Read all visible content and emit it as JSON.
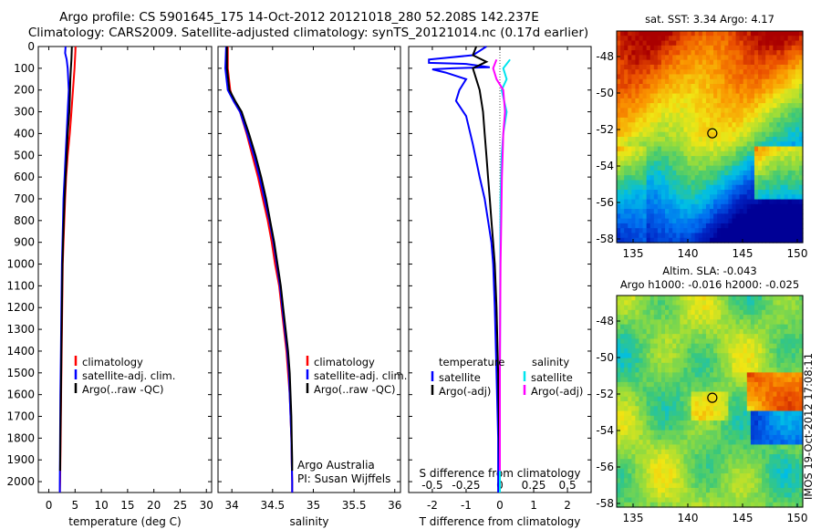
{
  "header": {
    "line1": "Argo profile: CS 5901645_175 14-Oct-2012 20121018_280 52.208S 142.237E",
    "line2": "Climatology: CARS2009. Satellite-adjusted climatology: synTS_20121014.nc (0.17d earlier)"
  },
  "credits": {
    "org": "Argo Australia",
    "pi": "PI: Susan Wijffels",
    "stamp": "IMOS 19-Oct-2012 17:08:11"
  },
  "colors": {
    "climatology": "#ff0000",
    "satellite": "#0000ff",
    "argo": "#000000",
    "sal_satellite": "#00e5ee",
    "sal_argo": "#ff00ff"
  },
  "chart_data": [
    {
      "type": "line",
      "name": "temperature",
      "xlabel": "temperature (deg C)",
      "ylabel": "",
      "xlim": [
        -2,
        31
      ],
      "ylim": [
        2050,
        0
      ],
      "x_ticks": [
        0,
        5,
        10,
        15,
        20,
        25,
        30
      ],
      "y_ticks": [
        0,
        100,
        200,
        300,
        400,
        500,
        600,
        700,
        800,
        900,
        1000,
        1100,
        1200,
        1300,
        1400,
        1500,
        1600,
        1700,
        1800,
        1900,
        2000
      ],
      "legend": [
        "climatology",
        "satellite-adj. clim.",
        "Argo(..raw -QC)"
      ],
      "series": [
        {
          "name": "climatology",
          "color": "#ff0000",
          "points": [
            [
              5.1,
              0
            ],
            [
              5.0,
              50
            ],
            [
              4.9,
              100
            ],
            [
              4.6,
              200
            ],
            [
              4.3,
              300
            ],
            [
              4.0,
              400
            ],
            [
              3.6,
              500
            ],
            [
              3.3,
              600
            ],
            [
              3.1,
              700
            ],
            [
              2.95,
              800
            ],
            [
              2.8,
              900
            ],
            [
              2.65,
              1000
            ],
            [
              2.55,
              1200
            ],
            [
              2.45,
              1400
            ],
            [
              2.35,
              1600
            ],
            [
              2.25,
              1800
            ],
            [
              2.15,
              2000
            ],
            [
              2.1,
              2050
            ]
          ]
        },
        {
          "name": "satellite-adj. clim.",
          "color": "#0000ff",
          "points": [
            [
              3.2,
              0
            ],
            [
              3.1,
              30
            ],
            [
              3.4,
              60
            ],
            [
              3.6,
              100
            ],
            [
              3.8,
              200
            ],
            [
              3.6,
              300
            ],
            [
              3.4,
              400
            ],
            [
              3.2,
              500
            ],
            [
              3.0,
              600
            ],
            [
              2.8,
              700
            ],
            [
              2.7,
              800
            ],
            [
              2.6,
              900
            ],
            [
              2.5,
              1000
            ],
            [
              2.4,
              1200
            ],
            [
              2.3,
              1400
            ],
            [
              2.2,
              1600
            ],
            [
              2.15,
              1800
            ],
            [
              2.1,
              2000
            ],
            [
              2.1,
              2050
            ]
          ]
        },
        {
          "name": "Argo(..raw -QC)",
          "color": "#000000",
          "points": [
            [
              4.4,
              0
            ],
            [
              4.3,
              60
            ],
            [
              4.2,
              100
            ],
            [
              4.1,
              150
            ],
            [
              4.0,
              250
            ],
            [
              3.9,
              300
            ],
            [
              3.6,
              400
            ],
            [
              3.4,
              500
            ],
            [
              3.2,
              600
            ],
            [
              3.0,
              700
            ],
            [
              2.85,
              800
            ],
            [
              2.7,
              900
            ],
            [
              2.6,
              1000
            ],
            [
              2.5,
              1200
            ],
            [
              2.4,
              1400
            ],
            [
              2.3,
              1600
            ],
            [
              2.2,
              1800
            ],
            [
              2.15,
              1950
            ]
          ]
        }
      ]
    },
    {
      "type": "line",
      "name": "salinity",
      "xlabel": "salinity",
      "ylabel": "",
      "xlim": [
        33.83,
        36.07
      ],
      "ylim": [
        2050,
        0
      ],
      "x_ticks": [
        34,
        34.5,
        35,
        35.5,
        36
      ],
      "x_tick_labels": [
        "34",
        "34.5",
        "35",
        "35.5",
        "36"
      ],
      "legend": [
        "climatology",
        "satellite-adj. clim.",
        "Argo(..raw -QC)"
      ],
      "series": [
        {
          "name": "climatology",
          "color": "#ff0000",
          "points": [
            [
              33.95,
              0
            ],
            [
              33.95,
              100
            ],
            [
              33.98,
              200
            ],
            [
              34.02,
              250
            ],
            [
              34.1,
              300
            ],
            [
              34.18,
              400
            ],
            [
              34.25,
              500
            ],
            [
              34.32,
              600
            ],
            [
              34.38,
              700
            ],
            [
              34.44,
              800
            ],
            [
              34.49,
              900
            ],
            [
              34.53,
              1000
            ],
            [
              34.58,
              1100
            ],
            [
              34.61,
              1200
            ],
            [
              34.64,
              1300
            ],
            [
              34.67,
              1400
            ],
            [
              34.69,
              1500
            ],
            [
              34.71,
              1600
            ],
            [
              34.72,
              1700
            ],
            [
              34.73,
              1800
            ],
            [
              34.735,
              1900
            ],
            [
              34.74,
              2000
            ],
            [
              34.74,
              2050
            ]
          ]
        },
        {
          "name": "satellite-adj. clim.",
          "color": "#0000ff",
          "points": [
            [
              33.93,
              0
            ],
            [
              33.92,
              100
            ],
            [
              33.95,
              200
            ],
            [
              34.02,
              250
            ],
            [
              34.1,
              300
            ],
            [
              34.19,
              400
            ],
            [
              34.27,
              500
            ],
            [
              34.34,
              600
            ],
            [
              34.4,
              700
            ],
            [
              34.46,
              800
            ],
            [
              34.51,
              900
            ],
            [
              34.55,
              1000
            ],
            [
              34.59,
              1100
            ],
            [
              34.62,
              1200
            ],
            [
              34.65,
              1300
            ],
            [
              34.68,
              1400
            ],
            [
              34.7,
              1500
            ],
            [
              34.71,
              1600
            ],
            [
              34.72,
              1700
            ],
            [
              34.73,
              1800
            ],
            [
              34.735,
              1900
            ],
            [
              34.74,
              2000
            ],
            [
              34.74,
              2050
            ]
          ]
        },
        {
          "name": "Argo(..raw -QC)",
          "color": "#000000",
          "points": [
            [
              33.94,
              0
            ],
            [
              33.94,
              100
            ],
            [
              33.97,
              200
            ],
            [
              34.04,
              250
            ],
            [
              34.12,
              300
            ],
            [
              34.21,
              400
            ],
            [
              34.29,
              500
            ],
            [
              34.36,
              600
            ],
            [
              34.42,
              700
            ],
            [
              34.47,
              800
            ],
            [
              34.52,
              900
            ],
            [
              34.56,
              1000
            ],
            [
              34.6,
              1100
            ],
            [
              34.63,
              1200
            ],
            [
              34.66,
              1300
            ],
            [
              34.69,
              1400
            ],
            [
              34.71,
              1500
            ],
            [
              34.72,
              1600
            ],
            [
              34.73,
              1700
            ],
            [
              34.735,
              1800
            ],
            [
              34.74,
              1900
            ],
            [
              34.74,
              1950
            ]
          ]
        }
      ]
    },
    {
      "type": "line",
      "name": "difference",
      "xlabel": "T difference from climatology",
      "xlabel_top": "S difference from climatology",
      "xlim": [
        -2.7,
        2.7
      ],
      "ylim": [
        2050,
        0
      ],
      "x_ticks": [
        -2,
        -1,
        0,
        1,
        2
      ],
      "s_ticks_labels": [
        "-0.5",
        "-0.25",
        "0",
        "0.25",
        "0.5"
      ],
      "legend_left_title": "temperature",
      "legend_right_title": "salinity",
      "legend": [
        "satellite",
        "Argo(-adj)",
        "satellite",
        "Argo(-adj)"
      ],
      "series": [
        {
          "name": "satellite",
          "color": "#0000ff",
          "points": [
            [
              -0.4,
              0
            ],
            [
              -0.6,
              20
            ],
            [
              -0.8,
              40
            ],
            [
              -2.1,
              60
            ],
            [
              -2.1,
              75
            ],
            [
              -1.0,
              80
            ],
            [
              -0.3,
              95
            ],
            [
              -1.4,
              100
            ],
            [
              -2.0,
              105
            ],
            [
              -1.6,
              120
            ],
            [
              -1.0,
              150
            ],
            [
              -1.2,
              200
            ],
            [
              -1.3,
              250
            ],
            [
              -1.0,
              320
            ],
            [
              -0.8,
              450
            ],
            [
              -0.6,
              600
            ],
            [
              -0.45,
              700
            ],
            [
              -0.35,
              800
            ],
            [
              -0.25,
              900
            ],
            [
              -0.2,
              1000
            ],
            [
              -0.15,
              1200
            ],
            [
              -0.1,
              1500
            ],
            [
              -0.05,
              1800
            ],
            [
              -0.05,
              2050
            ]
          ]
        },
        {
          "name": "Argo(-adj)",
          "color": "#000000",
          "points": [
            [
              -0.7,
              0
            ],
            [
              -0.8,
              40
            ],
            [
              -0.4,
              70
            ],
            [
              -0.8,
              100
            ],
            [
              -0.7,
              150
            ],
            [
              -0.6,
              200
            ],
            [
              -0.5,
              300
            ],
            [
              -0.45,
              400
            ],
            [
              -0.4,
              500
            ],
            [
              -0.35,
              600
            ],
            [
              -0.3,
              700
            ],
            [
              -0.25,
              800
            ],
            [
              -0.2,
              900
            ],
            [
              -0.15,
              1000
            ],
            [
              -0.1,
              1200
            ],
            [
              -0.05,
              1500
            ],
            [
              -0.02,
              1800
            ],
            [
              0,
              1950
            ]
          ]
        },
        {
          "name": "salinity satellite",
          "color": "#00e5ee",
          "points": [
            [
              0.3,
              60
            ],
            [
              0.1,
              100
            ],
            [
              0.2,
              150
            ],
            [
              0.05,
              200
            ],
            [
              0.2,
              300
            ],
            [
              0.1,
              400
            ],
            [
              0.05,
              500
            ],
            [
              0.02,
              700
            ],
            [
              0.01,
              1000
            ],
            [
              0,
              1500
            ],
            [
              0,
              2050
            ]
          ]
        },
        {
          "name": "salinity Argo(-adj)",
          "color": "#ff00ff",
          "points": [
            [
              -0.1,
              60
            ],
            [
              -0.2,
              100
            ],
            [
              -0.1,
              150
            ],
            [
              0.1,
              200
            ],
            [
              0.15,
              300
            ],
            [
              0.1,
              400
            ],
            [
              0.08,
              500
            ],
            [
              0.06,
              600
            ],
            [
              0.04,
              800
            ],
            [
              0.02,
              1000
            ],
            [
              0.01,
              1200
            ],
            [
              0,
              1500
            ],
            [
              0,
              1950
            ]
          ]
        }
      ]
    },
    {
      "type": "heatmap",
      "name": "sst-map",
      "title": "sat. SST: 3.34  Argo: 4.17",
      "xlim": [
        133.5,
        150.5
      ],
      "ylim": [
        -58.2,
        -46.6
      ],
      "x_ticks": [
        135,
        140,
        145,
        150
      ],
      "y_ticks": [
        -48,
        -50,
        -52,
        -54,
        -56,
        -58
      ],
      "marker": [
        142.237,
        -52.208
      ]
    },
    {
      "type": "heatmap",
      "name": "sla-map",
      "title": "Altim. SLA: -0.043",
      "subtitle": "Argo h1000: -0.016 h2000: -0.025",
      "xlim": [
        133.5,
        150.5
      ],
      "ylim": [
        -58.2,
        -46.6
      ],
      "x_ticks": [
        135,
        140,
        145,
        150
      ],
      "y_ticks": [
        -48,
        -50,
        -52,
        -54,
        -56,
        -58
      ],
      "marker": [
        142.237,
        -52.208
      ]
    }
  ]
}
